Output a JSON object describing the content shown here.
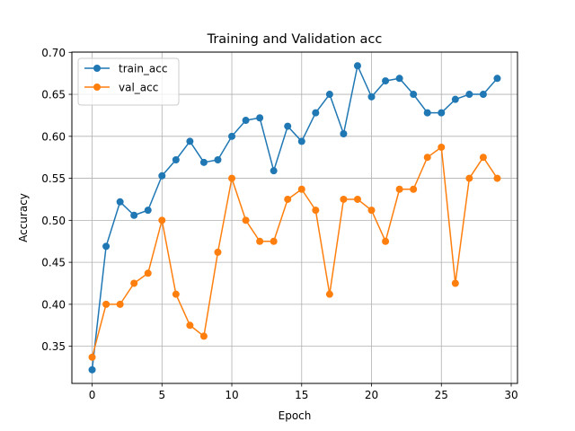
{
  "chart_data": {
    "type": "line",
    "title": "Training and Validation acc",
    "xlabel": "Epoch",
    "ylabel": "Accuracy",
    "xlim": [
      -1.45,
      30.45
    ],
    "ylim": [
      0.3058,
      0.7003
    ],
    "x_ticks": [
      0,
      5,
      10,
      15,
      20,
      25,
      30
    ],
    "y_ticks": [
      0.35,
      0.4,
      0.45,
      0.5,
      0.55,
      0.6,
      0.65,
      0.7
    ],
    "y_tick_labels": [
      "0.35",
      "0.40",
      "0.45",
      "0.50",
      "0.55",
      "0.60",
      "0.65",
      "0.70"
    ],
    "grid": true,
    "legend_position": "top-left",
    "x": [
      0,
      1,
      2,
      3,
      4,
      5,
      6,
      7,
      8,
      9,
      10,
      11,
      12,
      13,
      14,
      15,
      16,
      17,
      18,
      19,
      20,
      21,
      22,
      23,
      24,
      25,
      26,
      27,
      28,
      29
    ],
    "series": [
      {
        "name": "train_acc",
        "color": "#1f77b4",
        "values": [
          0.322,
          0.469,
          0.522,
          0.506,
          0.512,
          0.553,
          0.572,
          0.594,
          0.569,
          0.572,
          0.6,
          0.619,
          0.622,
          0.559,
          0.612,
          0.594,
          0.628,
          0.65,
          0.603,
          0.684,
          0.647,
          0.666,
          0.669,
          0.65,
          0.628,
          0.628,
          0.644,
          0.65,
          0.65,
          0.669
        ]
      },
      {
        "name": "val_acc",
        "color": "#ff7f0e",
        "values": [
          0.337,
          0.4,
          0.4,
          0.425,
          0.437,
          0.5,
          0.412,
          0.375,
          0.362,
          0.462,
          0.55,
          0.5,
          0.475,
          0.475,
          0.525,
          0.537,
          0.512,
          0.412,
          0.525,
          0.525,
          0.512,
          0.475,
          0.537,
          0.537,
          0.575,
          0.587,
          0.425,
          0.55,
          0.575,
          0.55
        ]
      }
    ]
  }
}
